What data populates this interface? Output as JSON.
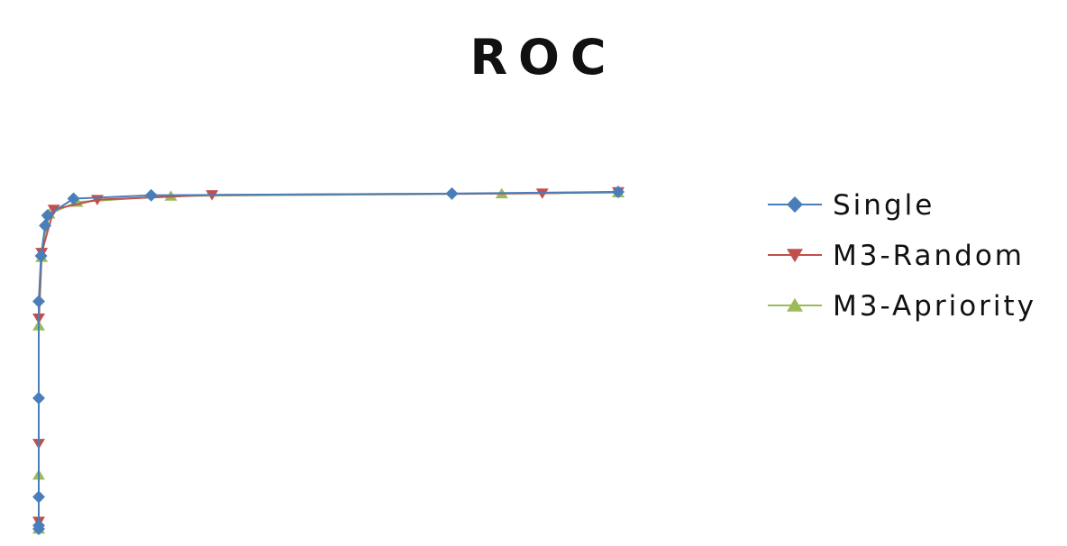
{
  "chart_data": {
    "type": "line",
    "title": "ROC",
    "xlabel": "",
    "ylabel": "",
    "xlim": [
      0,
      1
    ],
    "ylim": [
      0,
      1
    ],
    "grid": false,
    "axes_visible": false,
    "legend_position": "right",
    "series": [
      {
        "name": "Single",
        "color": "#4a7ebb",
        "marker": "diamond",
        "x": [
          0.0,
          0.0,
          0.0,
          0.0,
          0.0,
          0.004,
          0.011,
          0.015,
          0.06,
          0.194,
          0.713,
          1.0
        ],
        "y": [
          0.0,
          0.01,
          0.095,
          0.388,
          0.675,
          0.81,
          0.9,
          0.93,
          0.98,
          0.99,
          0.995,
          1.0
        ]
      },
      {
        "name": "M3-Random",
        "color": "#c0504d",
        "marker": "triangle-down",
        "x": [
          0.0,
          0.0,
          0.0,
          0.005,
          0.026,
          0.101,
          0.299,
          0.869,
          1.0
        ],
        "y": [
          0.022,
          0.253,
          0.625,
          0.82,
          0.948,
          0.977,
          0.991,
          0.996,
          1.0
        ]
      },
      {
        "name": "M3-Apriority",
        "color": "#9bbb59",
        "marker": "triangle-up",
        "x": [
          0.0,
          0.0,
          0.0,
          0.005,
          0.018,
          0.066,
          0.228,
          0.799,
          1.0
        ],
        "y": [
          0.0,
          0.16,
          0.603,
          0.806,
          0.935,
          0.97,
          0.988,
          0.995,
          0.998
        ]
      }
    ]
  }
}
